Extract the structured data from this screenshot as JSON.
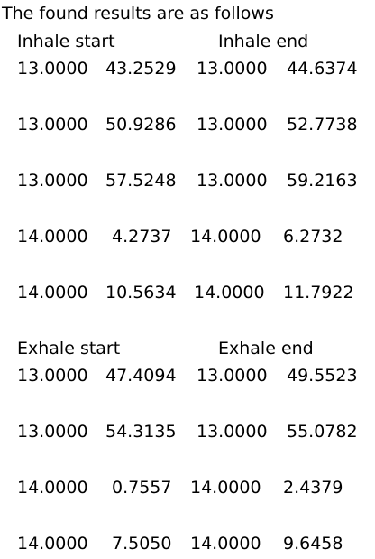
{
  "title": "The found results are as follows",
  "inhale": {
    "start_label": "Inhale start",
    "end_label": "Inhale end",
    "rows": [
      [
        "13.0000",
        "43.2529",
        "13.0000",
        "44.6374"
      ],
      [
        "13.0000",
        "50.9286",
        "13.0000",
        "52.7738"
      ],
      [
        "13.0000",
        "57.5248",
        "13.0000",
        "59.2163"
      ],
      [
        "14.0000",
        "4.2737",
        "14.0000",
        "6.2732"
      ],
      [
        "14.0000",
        "10.5634",
        "14.0000",
        "11.7922"
      ]
    ]
  },
  "exhale": {
    "start_label": "Exhale start",
    "end_label": "Exhale end",
    "rows": [
      [
        "13.0000",
        "47.4094",
        "13.0000",
        "49.5523"
      ],
      [
        "13.0000",
        "54.3135",
        "13.0000",
        "55.0782"
      ],
      [
        "14.0000",
        "0.7557",
        "14.0000",
        "2.4379"
      ],
      [
        "14.0000",
        "7.5050",
        "14.0000",
        "9.6458"
      ]
    ]
  }
}
